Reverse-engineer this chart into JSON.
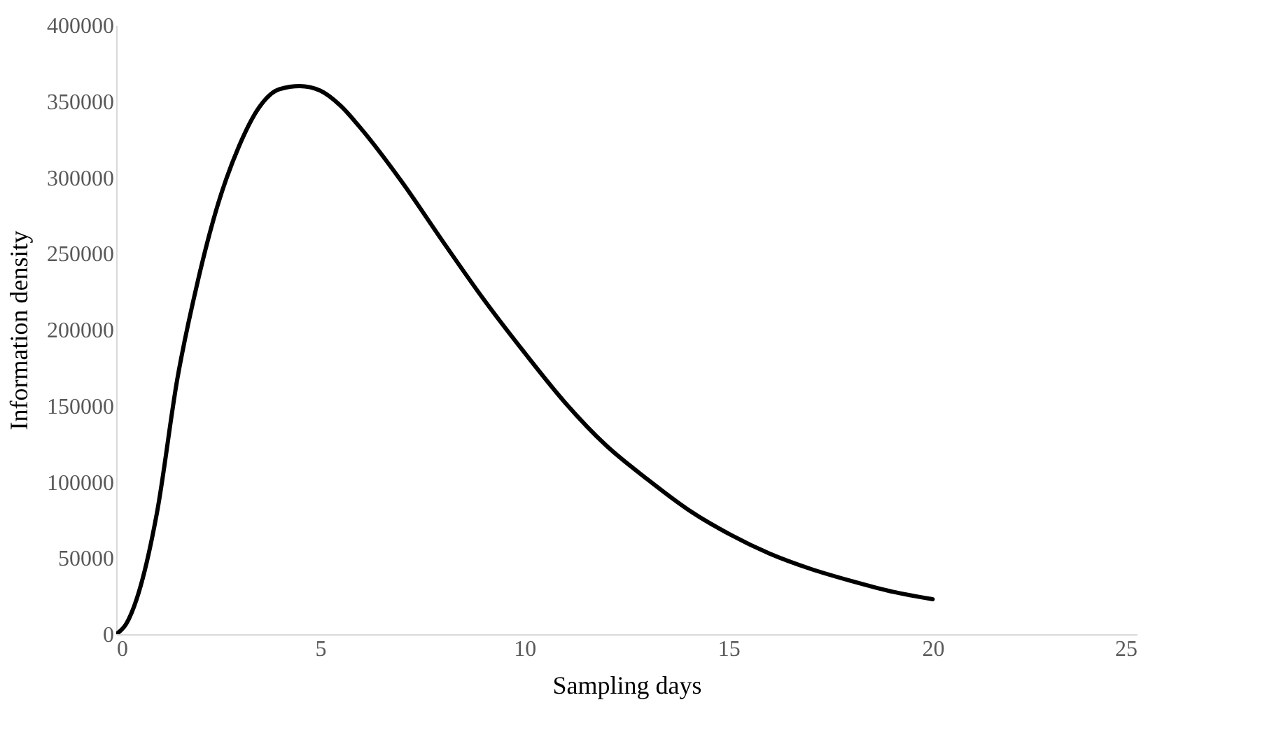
{
  "chart_data": {
    "type": "line",
    "xlabel": "Sampling days",
    "ylabel": "Information density",
    "x": [
      0,
      0.25,
      0.5,
      1,
      1.5,
      2,
      2.5,
      3,
      3.5,
      4,
      4.5,
      5,
      5.5,
      6,
      7,
      8,
      9,
      10,
      11,
      12,
      13,
      14,
      15,
      16,
      17,
      18,
      19,
      20
    ],
    "series": [
      {
        "color": "#000000",
        "values": [
          0,
          7000,
          23000,
          80000,
          168000,
          232000,
          283000,
          320000,
          346000,
          358000,
          360000,
          357000,
          347000,
          332000,
          297000,
          258000,
          220000,
          185000,
          152000,
          124000,
          102000,
          82000,
          66000,
          53000,
          43000,
          35000,
          28000,
          23000
        ]
      }
    ],
    "xlim": [
      0,
      25
    ],
    "xticks": [
      0,
      5,
      10,
      15,
      20,
      25
    ],
    "ylim": [
      0,
      400000
    ],
    "yticks": [
      0,
      50000,
      100000,
      150000,
      200000,
      250000,
      300000,
      350000,
      400000
    ],
    "grid": false,
    "marker": "none",
    "line_style": "solid"
  }
}
